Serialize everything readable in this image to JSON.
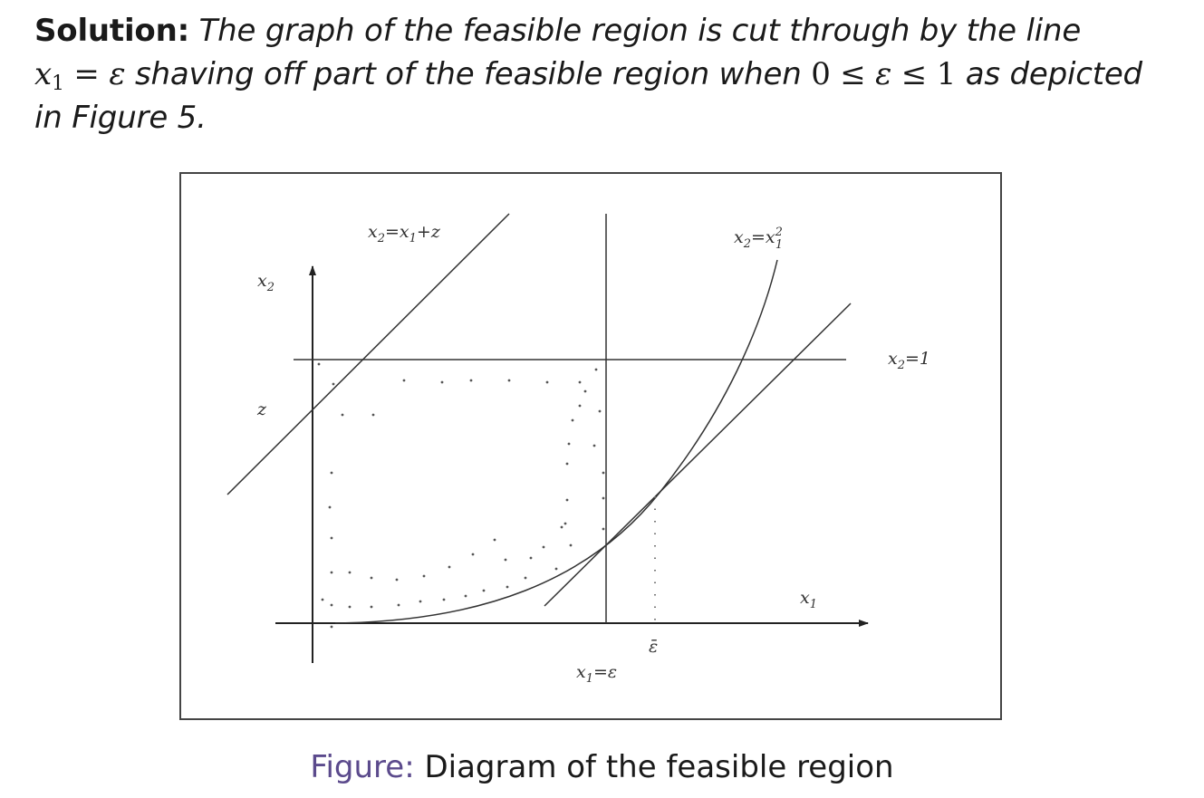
{
  "solution": {
    "lead": "Solution:",
    "t1": " The graph of the feasible region is cut through by the line",
    "m_x": "x",
    "m_sub1": "1",
    "m_eq": " = ",
    "m_eps": "ε",
    "t2": " shaving off part of the feasible region when ",
    "m_ineq": "0 ≤ ",
    "m_eps2": "ε",
    "m_ineq2": " ≤ 1",
    "t3": " as depicted",
    "t4": "in Figure 5."
  },
  "diagram": {
    "labels": {
      "x2_axis": {
        "base": "x",
        "sub": "2"
      },
      "x1_axis": {
        "base": "x",
        "sub": "1"
      },
      "z": "z",
      "line_label": {
        "a": "x",
        "a_sub": "2",
        "eq": "=",
        "b": "x",
        "b_sub": "1",
        "plus": "+",
        "c": "z"
      },
      "parabola_label": {
        "a": "x",
        "a_sub": "2",
        "eq": "=",
        "b": "x",
        "b_sub": "1",
        "b_sup": "2"
      },
      "horizontal_label": {
        "a": "x",
        "a_sub": "2",
        "eq": "=",
        "val": "1"
      },
      "vertical_label": {
        "a": "x",
        "a_sub": "1",
        "eq": "=",
        "eps": "ε"
      },
      "eps_bar": "ε̄"
    }
  },
  "caption": {
    "label": "Figure:",
    "text": " Diagram of the feasible region"
  }
}
